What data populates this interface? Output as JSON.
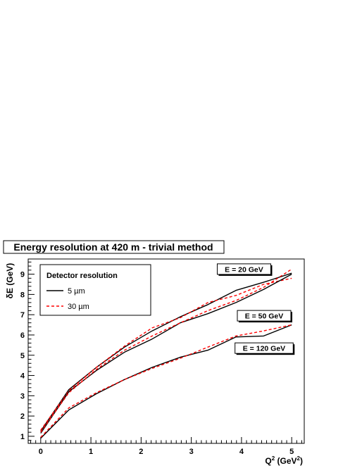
{
  "chart_data": {
    "type": "line",
    "title": "Energy resolution at 420 m - trivial method",
    "xlabel": "Q",
    "xlabel_sup": "2",
    "xlabel_unit": " (GeV",
    "xlabel_unit_sup": "2",
    "xlabel_close": ")",
    "ylabel": "δE (GeV)",
    "xlim": [
      -0.25,
      5.25
    ],
    "ylim": [
      0.65,
      9.75
    ],
    "x_ticks": [
      0,
      1,
      2,
      3,
      4,
      5
    ],
    "y_ticks": [
      1,
      2,
      3,
      4,
      5,
      6,
      7,
      8,
      9
    ],
    "grid": false,
    "legend": {
      "title": "Detector resolution",
      "placement": "top-left",
      "entries": [
        {
          "label": "5 µm",
          "color": "#000000",
          "dash": "solid"
        },
        {
          "label": "30 µm",
          "color": "#ff0000",
          "dash": "dashed"
        }
      ]
    },
    "annotations": [
      {
        "text": "E = 20 GeV",
        "x": 4.05,
        "y": 9.25
      },
      {
        "text": "E = 50 GeV",
        "x": 4.45,
        "y": 6.95
      },
      {
        "text": "E = 120 GeV",
        "x": 4.45,
        "y": 5.35
      }
    ],
    "x": [
      0,
      0.56,
      1.11,
      1.67,
      2.22,
      2.78,
      3.33,
      3.89,
      4.44,
      5.0
    ],
    "series": [
      {
        "name": "5 µm",
        "group": "E = 20 GeV",
        "color": "#000000",
        "dash": "solid",
        "values": [
          1.25,
          3.3,
          4.4,
          5.4,
          6.2,
          6.9,
          7.5,
          8.2,
          8.6,
          9.05
        ]
      },
      {
        "name": "30 µm",
        "group": "E = 20 GeV",
        "color": "#ff0000",
        "dash": "dashed",
        "values": [
          1.3,
          3.25,
          4.4,
          5.45,
          6.35,
          6.85,
          7.6,
          7.95,
          8.5,
          8.8
        ]
      },
      {
        "name": "5 µm",
        "group": "E = 50 GeV",
        "color": "#000000",
        "dash": "solid",
        "values": [
          1.15,
          3.2,
          4.25,
          5.15,
          5.8,
          6.6,
          7.05,
          7.6,
          8.25,
          9.0
        ]
      },
      {
        "name": "30 µm",
        "group": "E = 50 GeV",
        "color": "#ff0000",
        "dash": "dashed",
        "values": [
          1.2,
          3.15,
          4.3,
          5.25,
          5.95,
          6.6,
          7.2,
          7.7,
          8.35,
          9.25
        ]
      },
      {
        "name": "5 µm",
        "group": "E = 120 GeV",
        "color": "#000000",
        "dash": "solid",
        "values": [
          0.9,
          2.3,
          3.1,
          3.8,
          4.4,
          4.9,
          5.25,
          5.9,
          5.95,
          6.5
        ]
      },
      {
        "name": "30 µm",
        "group": "E = 120 GeV",
        "color": "#ff0000",
        "dash": "dashed",
        "values": [
          0.95,
          2.4,
          3.15,
          3.8,
          4.35,
          4.85,
          5.4,
          5.95,
          6.2,
          6.5
        ]
      }
    ]
  }
}
